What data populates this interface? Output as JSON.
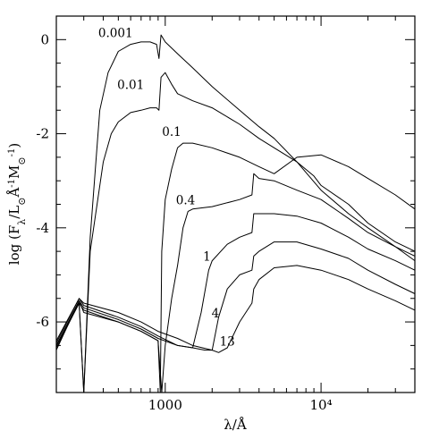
{
  "chart_data": {
    "type": "line",
    "title": "",
    "xlabel": "λ/Å",
    "ylabel": "log (F_λ/L_⊙Å⁻¹M_⊙⁻¹)",
    "xscale": "log",
    "xlim": [
      200,
      40000
    ],
    "ylim": [
      -7.5,
      0.5
    ],
    "grid": false,
    "legend": "none",
    "x_ticks": [
      {
        "value": 1000,
        "label": "1000"
      },
      {
        "value": 10000,
        "label": "10⁴"
      }
    ],
    "y_ticks": [
      {
        "value": 0,
        "label": "0"
      },
      {
        "value": -2,
        "label": "-2"
      },
      {
        "value": -4,
        "label": "-4"
      },
      {
        "value": -6,
        "label": "-6"
      }
    ],
    "series": [
      {
        "name": "0.001",
        "label_at": [
          480,
          0.05
        ],
        "x": [
          200,
          280,
          300,
          330,
          380,
          430,
          500,
          600,
          700,
          800,
          880,
          912,
          940,
          1000,
          1200,
          1500,
          2000,
          3000,
          4000,
          5000,
          7000,
          10000,
          15000,
          20000,
          30000,
          40000
        ],
        "y": [
          -6.5,
          -5.6,
          -7.5,
          -4.2,
          -1.5,
          -0.7,
          -0.25,
          -0.1,
          -0.05,
          -0.05,
          -0.1,
          -0.4,
          0.1,
          -0.05,
          -0.3,
          -0.6,
          -1.0,
          -1.5,
          -1.85,
          -2.1,
          -2.6,
          -3.2,
          -3.7,
          -4.0,
          -4.4,
          -4.6
        ]
      },
      {
        "name": "0.01",
        "label_at": [
          600,
          -1.05
        ],
        "x": [
          200,
          280,
          300,
          330,
          400,
          450,
          500,
          600,
          700,
          800,
          880,
          912,
          940,
          1000,
          1100,
          1200,
          1500,
          2000,
          3000,
          4000,
          5000,
          7000,
          9000,
          10000,
          15000,
          20000,
          30000,
          40000
        ],
        "y": [
          -6.5,
          -5.6,
          -7.5,
          -4.5,
          -2.6,
          -2.0,
          -1.75,
          -1.55,
          -1.5,
          -1.45,
          -1.45,
          -1.5,
          -0.8,
          -0.7,
          -0.95,
          -1.15,
          -1.3,
          -1.45,
          -1.8,
          -2.1,
          -2.3,
          -2.6,
          -2.9,
          -3.1,
          -3.5,
          -3.9,
          -4.3,
          -4.5
        ]
      },
      {
        "name": "0.1",
        "label_at": [
          1100,
          -2.05
        ],
        "x": [
          200,
          280,
          300,
          500,
          700,
          900,
          930,
          950,
          1000,
          1100,
          1200,
          1300,
          1500,
          2000,
          3000,
          4000,
          5000,
          7000,
          10000,
          15000,
          20000,
          30000,
          40000
        ],
        "y": [
          -6.6,
          -5.55,
          -5.8,
          -6.0,
          -6.2,
          -6.4,
          -7.5,
          -4.5,
          -3.4,
          -2.75,
          -2.3,
          -2.2,
          -2.2,
          -2.3,
          -2.5,
          -2.7,
          -2.85,
          -2.5,
          -2.45,
          -2.7,
          -2.95,
          -3.3,
          -3.6
        ]
      },
      {
        "name": "0.4",
        "label_at": [
          1350,
          -3.5
        ],
        "x": [
          200,
          280,
          300,
          500,
          700,
          900,
          950,
          1000,
          1100,
          1200,
          1300,
          1400,
          1500,
          2000,
          3000,
          3600,
          3700,
          4000,
          5000,
          7000,
          10000,
          15000,
          20000,
          30000,
          40000
        ],
        "y": [
          -6.55,
          -5.6,
          -5.75,
          -6.0,
          -6.2,
          -6.4,
          -7.5,
          -6.5,
          -5.5,
          -4.8,
          -4.0,
          -3.65,
          -3.6,
          -3.55,
          -3.4,
          -3.3,
          -2.85,
          -2.95,
          -3.0,
          -3.2,
          -3.4,
          -3.8,
          -4.1,
          -4.4,
          -4.7
        ]
      },
      {
        "name": "1",
        "label_at": [
          1850,
          -4.7
        ],
        "x": [
          200,
          280,
          300,
          500,
          700,
          900,
          1200,
          1500,
          1700,
          1900,
          2000,
          2500,
          3000,
          3600,
          3700,
          4000,
          5000,
          7000,
          10000,
          15000,
          20000,
          30000,
          40000
        ],
        "y": [
          -6.5,
          -5.55,
          -5.7,
          -5.95,
          -6.15,
          -6.35,
          -6.5,
          -6.55,
          -5.8,
          -4.9,
          -4.7,
          -4.35,
          -4.2,
          -4.1,
          -3.7,
          -3.7,
          -3.7,
          -3.75,
          -3.9,
          -4.2,
          -4.45,
          -4.7,
          -4.9
        ]
      },
      {
        "name": "4",
        "label_at": [
          2100,
          -5.9
        ],
        "x": [
          200,
          280,
          300,
          500,
          700,
          900,
          1200,
          1500,
          1800,
          2000,
          2200,
          2500,
          3000,
          3600,
          3700,
          4000,
          5000,
          7000,
          10000,
          15000,
          20000,
          30000,
          40000
        ],
        "y": [
          -6.45,
          -5.5,
          -5.65,
          -5.9,
          -6.1,
          -6.3,
          -6.5,
          -6.55,
          -6.6,
          -6.6,
          -5.9,
          -5.3,
          -5.0,
          -4.9,
          -4.6,
          -4.5,
          -4.3,
          -4.3,
          -4.45,
          -4.65,
          -4.9,
          -5.2,
          -5.4
        ]
      },
      {
        "name": "13",
        "label_at": [
          2500,
          -6.5
        ],
        "x": [
          200,
          280,
          300,
          500,
          700,
          900,
          1200,
          1500,
          2000,
          2200,
          2500,
          3000,
          3600,
          3700,
          4000,
          5000,
          7000,
          10000,
          15000,
          20000,
          30000,
          40000
        ],
        "y": [
          -6.4,
          -5.5,
          -5.6,
          -5.8,
          -6.0,
          -6.2,
          -6.35,
          -6.5,
          -6.6,
          -6.65,
          -6.55,
          -6.0,
          -5.6,
          -5.3,
          -5.1,
          -4.85,
          -4.8,
          -4.9,
          -5.1,
          -5.3,
          -5.55,
          -5.75
        ]
      }
    ]
  }
}
